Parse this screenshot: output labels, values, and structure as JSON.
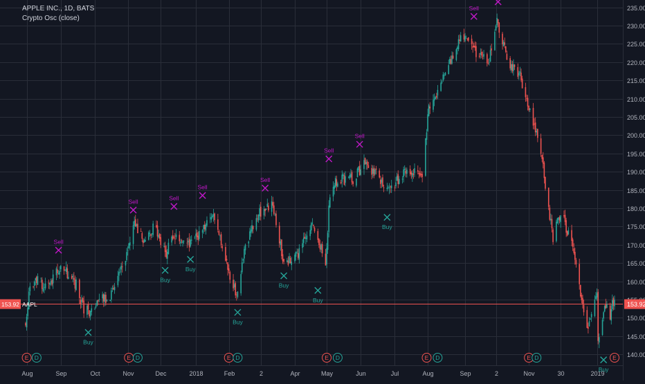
{
  "header": {
    "symbol_line": "APPLE INC., 1D, BATS",
    "indicator_line": "Crypto Osc (close)"
  },
  "colors": {
    "background": "#131722",
    "grid": "#2a2e39",
    "axis_text": "#b2b5be",
    "up": "#26a69a",
    "down": "#ef5350",
    "sell": "#c218c9",
    "buy": "#26a69a",
    "price_line": "#ef5350",
    "earnings": "#ef5350",
    "dividend": "#26a69a"
  },
  "chart_data": {
    "type": "candlestick",
    "ylim": [
      137,
      237
    ],
    "y_ticks": [
      140,
      145,
      150,
      155,
      160,
      165,
      170,
      175,
      180,
      185,
      190,
      195,
      200,
      205,
      210,
      215,
      220,
      225,
      230,
      235
    ],
    "x_range": [
      "2017-07-31",
      "2019-01-18"
    ],
    "x_ticks": [
      {
        "date": "2017-08-01",
        "label": "Aug"
      },
      {
        "date": "2017-09-01",
        "label": "Sep"
      },
      {
        "date": "2017-10-02",
        "label": "Oct"
      },
      {
        "date": "2017-11-01",
        "label": "Nov"
      },
      {
        "date": "2017-12-01",
        "label": "Dec"
      },
      {
        "date": "2018-01-02",
        "label": "2018"
      },
      {
        "date": "2018-02-01",
        "label": "Feb"
      },
      {
        "date": "2018-03-02",
        "label": "2"
      },
      {
        "date": "2018-04-02",
        "label": "Apr"
      },
      {
        "date": "2018-05-01",
        "label": "May"
      },
      {
        "date": "2018-06-01",
        "label": "Jun"
      },
      {
        "date": "2018-07-02",
        "label": "Jul"
      },
      {
        "date": "2018-08-01",
        "label": "Aug"
      },
      {
        "date": "2018-09-04",
        "label": "Sep"
      },
      {
        "date": "2018-10-02",
        "label": "2"
      },
      {
        "date": "2018-11-01",
        "label": "Nov"
      },
      {
        "date": "2018-11-30",
        "label": "30"
      },
      {
        "date": "2019-01-02",
        "label": "2019"
      }
    ],
    "price_path": [
      [
        "2017-07-31",
        149
      ],
      [
        "2017-08-03",
        157
      ],
      [
        "2017-08-11",
        160
      ],
      [
        "2017-08-21",
        158
      ],
      [
        "2017-08-31",
        164
      ],
      [
        "2017-09-05",
        163
      ],
      [
        "2017-09-15",
        159
      ],
      [
        "2017-09-22",
        152
      ],
      [
        "2017-09-28",
        152
      ],
      [
        "2017-10-09",
        155
      ],
      [
        "2017-10-20",
        157
      ],
      [
        "2017-10-31",
        168
      ],
      [
        "2017-11-08",
        176
      ],
      [
        "2017-11-17",
        170
      ],
      [
        "2017-11-24",
        175
      ],
      [
        "2017-12-06",
        168
      ],
      [
        "2017-12-15",
        173
      ],
      [
        "2017-12-27",
        170
      ],
      [
        "2018-01-10",
        175
      ],
      [
        "2018-01-18",
        179
      ],
      [
        "2018-01-29",
        166
      ],
      [
        "2018-02-08",
        156
      ],
      [
        "2018-02-14",
        167
      ],
      [
        "2018-02-27",
        178
      ],
      [
        "2018-03-12",
        181
      ],
      [
        "2018-03-23",
        165
      ],
      [
        "2018-04-06",
        168
      ],
      [
        "2018-04-18",
        177
      ],
      [
        "2018-04-30",
        165
      ],
      [
        "2018-05-04",
        184
      ],
      [
        "2018-05-11",
        188
      ],
      [
        "2018-05-25",
        188
      ],
      [
        "2018-06-06",
        193
      ],
      [
        "2018-06-15",
        189
      ],
      [
        "2018-06-28",
        185
      ],
      [
        "2018-07-13",
        191
      ],
      [
        "2018-07-27",
        190
      ],
      [
        "2018-08-02",
        207
      ],
      [
        "2018-08-17",
        217
      ],
      [
        "2018-08-31",
        228
      ],
      [
        "2018-09-14",
        222
      ],
      [
        "2018-09-26",
        220
      ],
      [
        "2018-10-03",
        232
      ],
      [
        "2018-10-12",
        221
      ],
      [
        "2018-10-24",
        216
      ],
      [
        "2018-11-02",
        207
      ],
      [
        "2018-11-12",
        195
      ],
      [
        "2018-11-23",
        172
      ],
      [
        "2018-11-30",
        179
      ],
      [
        "2018-12-10",
        170
      ],
      [
        "2018-12-24",
        146
      ],
      [
        "2019-01-02",
        157
      ],
      [
        "2019-01-03",
        143
      ],
      [
        "2019-01-09",
        153
      ],
      [
        "2019-01-14",
        151
      ],
      [
        "2019-01-18",
        156
      ]
    ],
    "last_price": {
      "value": 153.92,
      "label": "153.92",
      "symbol": "AAPL"
    },
    "signals": [
      {
        "type": "sell",
        "date": "2017-08-30",
        "price": 168.5,
        "label": "Sell"
      },
      {
        "type": "buy",
        "date": "2017-09-26",
        "price": 146,
        "label": "Buy"
      },
      {
        "type": "sell",
        "date": "2017-11-06",
        "price": 179.5,
        "label": "Sell"
      },
      {
        "type": "buy",
        "date": "2017-12-05",
        "price": 163,
        "label": "Buy"
      },
      {
        "type": "sell",
        "date": "2017-12-13",
        "price": 180.5,
        "label": "Sell"
      },
      {
        "type": "buy",
        "date": "2017-12-28",
        "price": 166,
        "label": "Buy"
      },
      {
        "type": "sell",
        "date": "2018-01-08",
        "price": 183.5,
        "label": "Sell"
      },
      {
        "type": "buy",
        "date": "2018-02-09",
        "price": 151.5,
        "label": "Buy"
      },
      {
        "type": "sell",
        "date": "2018-03-06",
        "price": 185.5,
        "label": "Sell"
      },
      {
        "type": "buy",
        "date": "2018-03-23",
        "price": 161.5,
        "label": "Buy"
      },
      {
        "type": "buy",
        "date": "2018-04-23",
        "price": 157.5,
        "label": "Buy"
      },
      {
        "type": "sell",
        "date": "2018-05-03",
        "price": 193.5,
        "label": "Sell"
      },
      {
        "type": "sell",
        "date": "2018-05-31",
        "price": 197.5,
        "label": "Sell"
      },
      {
        "type": "buy",
        "date": "2018-06-25",
        "price": 177.5,
        "label": "Buy"
      },
      {
        "type": "sell",
        "date": "2018-09-12",
        "price": 232.5,
        "label": "Sell"
      },
      {
        "type": "sell",
        "date": "2018-10-04",
        "price": 236.5,
        "label": "Sell"
      },
      {
        "type": "buy",
        "date": "2019-01-08",
        "price": 138.5,
        "label": "Buy"
      }
    ],
    "events": [
      {
        "type": "earnings",
        "date": "2017-08-01",
        "label": "E"
      },
      {
        "type": "dividend",
        "date": "2017-08-10",
        "label": "D"
      },
      {
        "type": "earnings",
        "date": "2017-11-02",
        "label": "E"
      },
      {
        "type": "dividend",
        "date": "2017-11-10",
        "label": "D"
      },
      {
        "type": "earnings",
        "date": "2018-02-01",
        "label": "E"
      },
      {
        "type": "dividend",
        "date": "2018-02-09",
        "label": "D"
      },
      {
        "type": "earnings",
        "date": "2018-05-01",
        "label": "E"
      },
      {
        "type": "dividend",
        "date": "2018-05-11",
        "label": "D"
      },
      {
        "type": "earnings",
        "date": "2018-07-31",
        "label": "E"
      },
      {
        "type": "dividend",
        "date": "2018-08-10",
        "label": "D"
      },
      {
        "type": "earnings",
        "date": "2018-11-01",
        "label": "E"
      },
      {
        "type": "dividend",
        "date": "2018-11-08",
        "label": "D"
      },
      {
        "type": "earnings",
        "date": "2019-01-18",
        "label": "E"
      }
    ]
  }
}
